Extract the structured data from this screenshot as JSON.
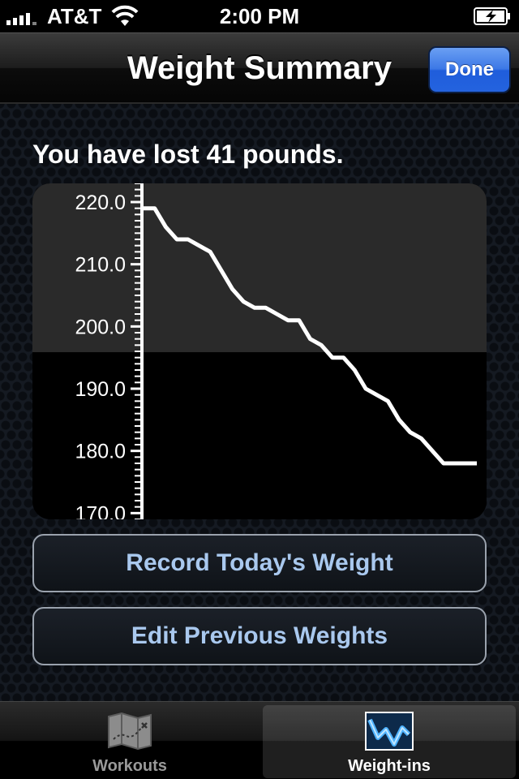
{
  "status_bar": {
    "carrier": "AT&T",
    "time": "2:00 PM"
  },
  "nav": {
    "title": "Weight Summary",
    "done_label": "Done"
  },
  "summary_text": "You have lost 41 pounds.",
  "chart_data": {
    "type": "line",
    "title": "",
    "xlabel": "",
    "ylabel": "",
    "ylim": [
      169,
      223
    ],
    "y_ticks": [
      "220.0",
      "210.0",
      "200.0",
      "190.0",
      "180.0",
      "170.0"
    ],
    "y_tick_values": [
      220,
      210,
      200,
      190,
      180,
      170
    ],
    "x": [
      1,
      2,
      3,
      4,
      5,
      6,
      7,
      8,
      9,
      10,
      11,
      12,
      13,
      14,
      15,
      16,
      17,
      18,
      19,
      20,
      21,
      22,
      23,
      24,
      25,
      26,
      27,
      28,
      29,
      30,
      31
    ],
    "values": [
      219,
      219,
      216,
      214,
      214,
      213,
      212,
      209,
      206,
      204,
      203,
      203,
      202,
      201,
      201,
      198,
      197,
      195,
      195,
      193,
      190,
      189,
      188,
      185,
      183,
      182,
      180,
      178,
      178,
      178,
      178
    ],
    "grid": false,
    "line_color": "#ffffff"
  },
  "buttons": {
    "record": "Record Today's Weight",
    "edit": "Edit Previous Weights"
  },
  "tabs": [
    {
      "label": "Workouts",
      "icon": "map-icon",
      "selected": false
    },
    {
      "label": "Weight-ins",
      "icon": "weight-chart-icon",
      "selected": true
    }
  ],
  "colors": {
    "accent": "#2463df",
    "button_text": "#a9c8ee"
  }
}
